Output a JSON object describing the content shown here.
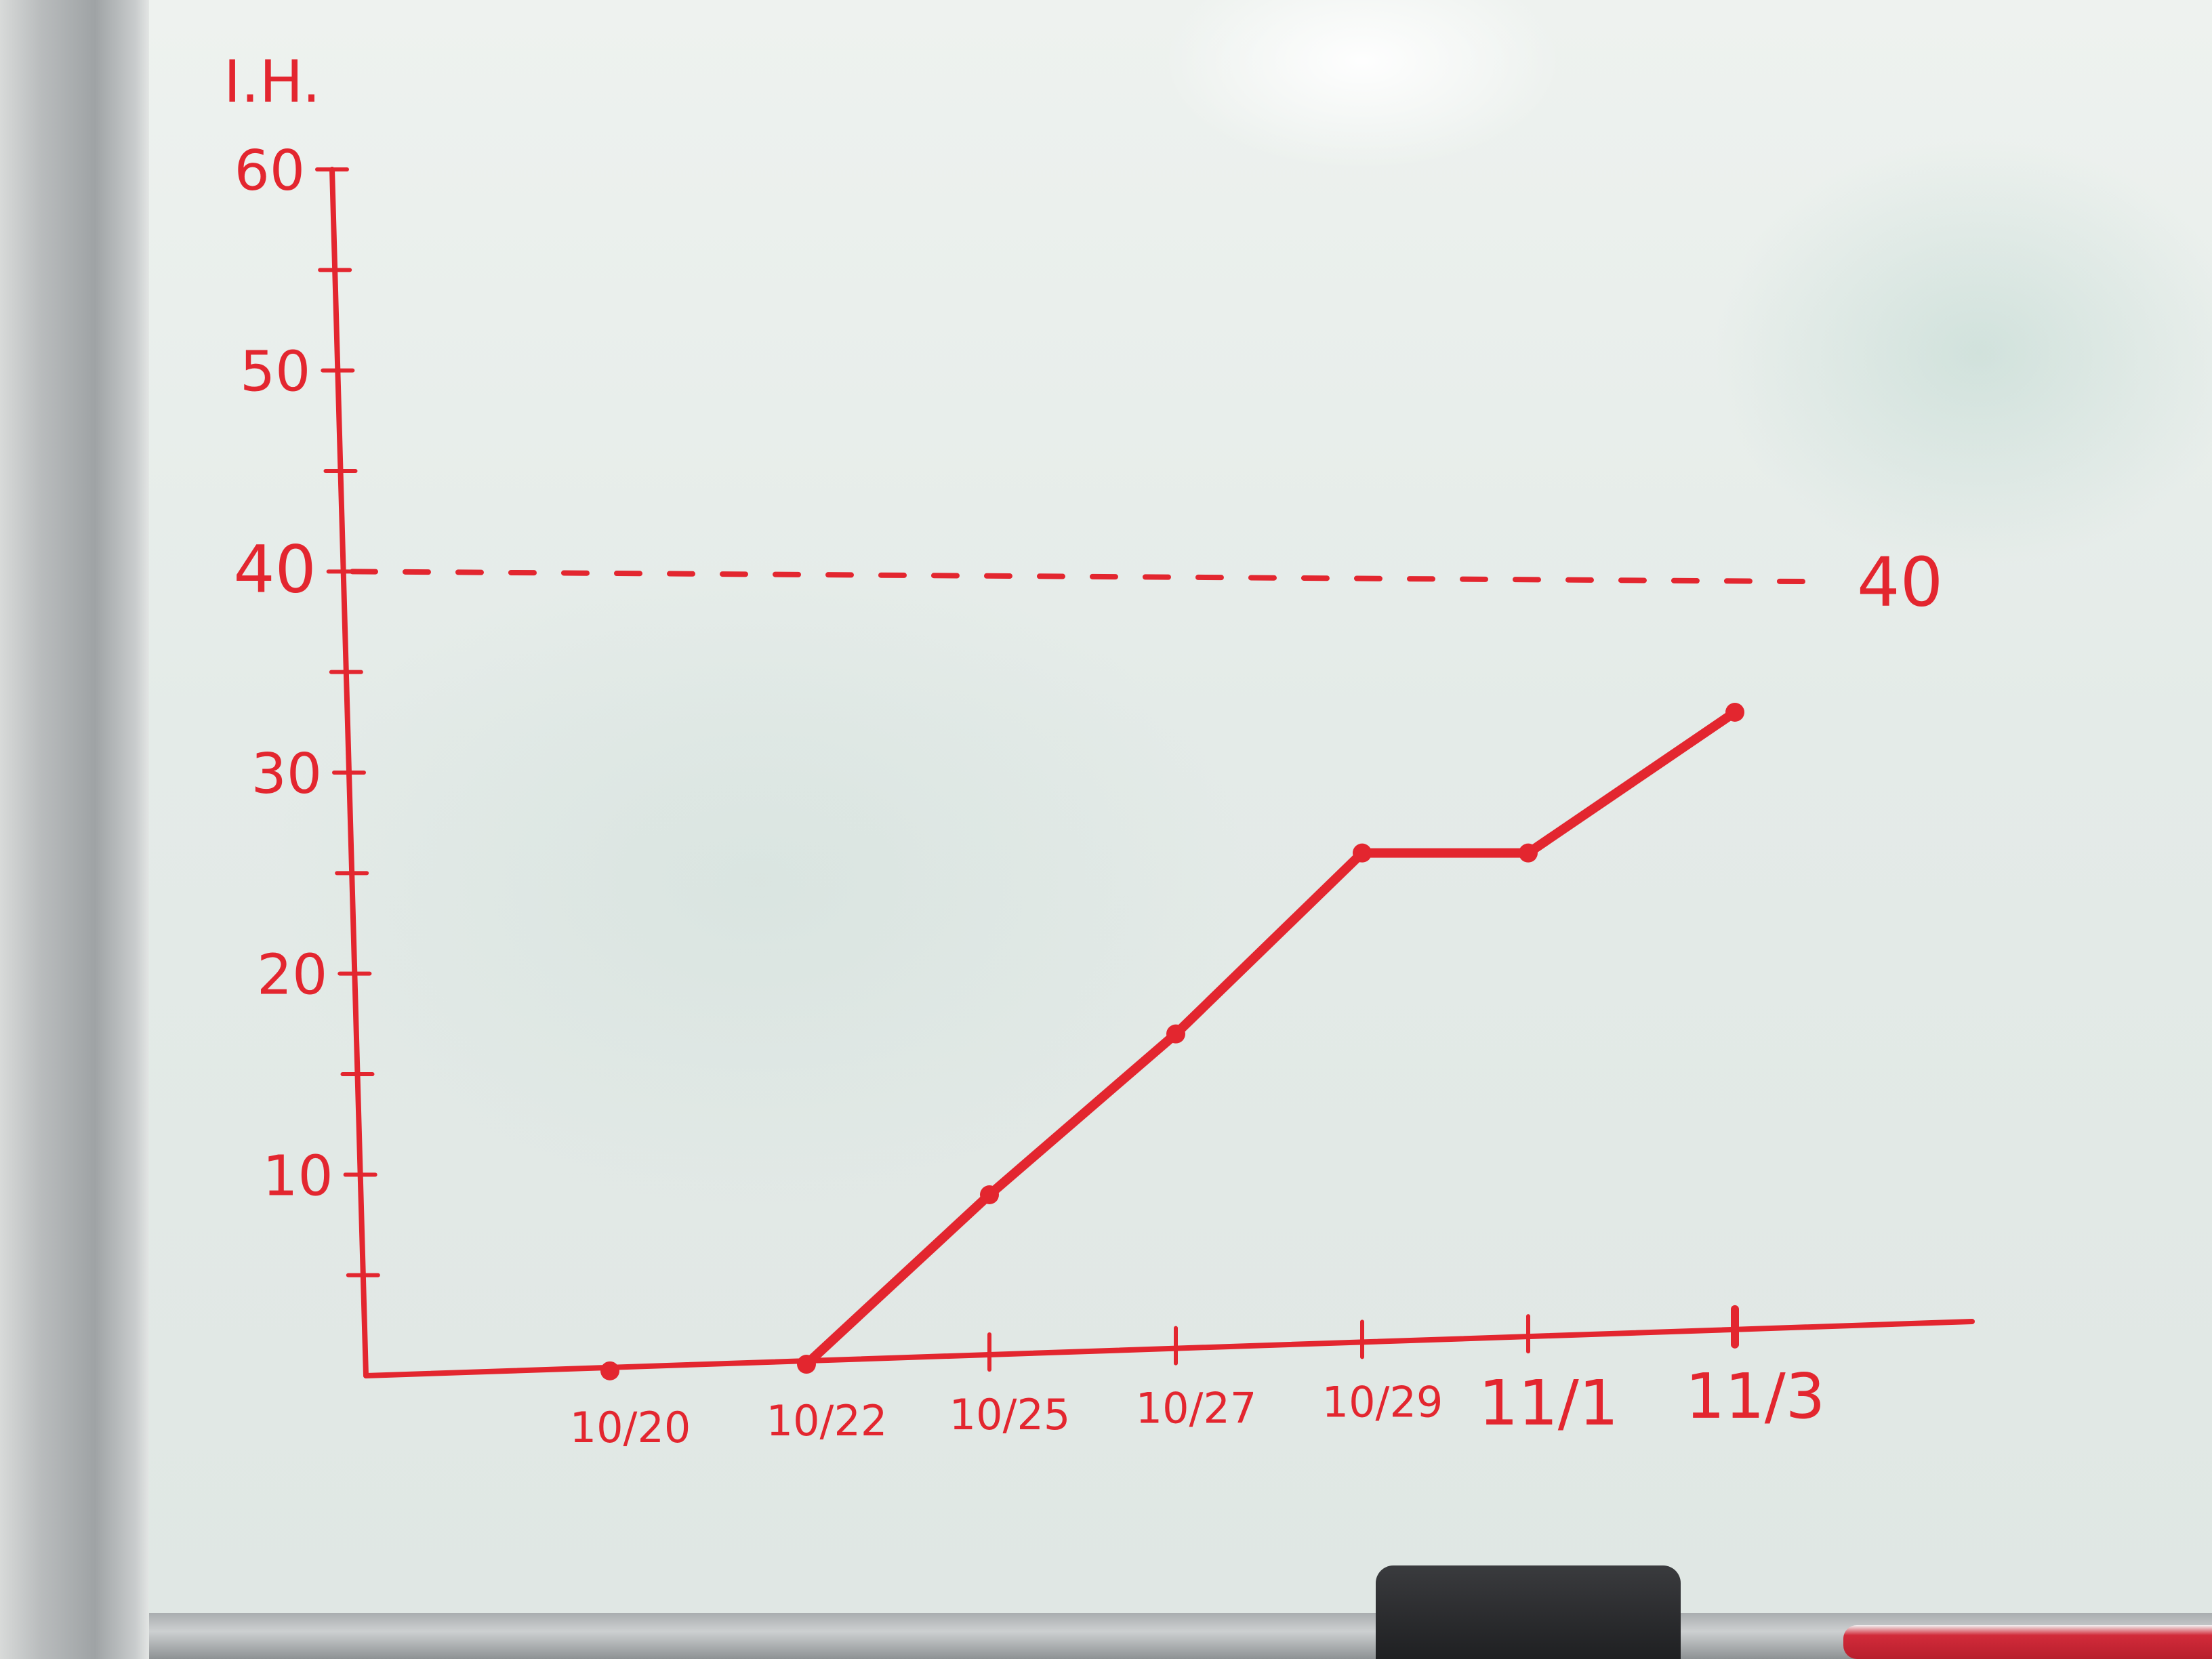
{
  "chart_data": {
    "type": "line",
    "title": "",
    "xlabel": "",
    "ylabel": "I.H.",
    "ylim": [
      0,
      60
    ],
    "y_ticks": [
      "10",
      "20",
      "30",
      "40",
      "50",
      "60"
    ],
    "x_tick_labels": [
      "10/20",
      "10/22",
      "10/25",
      "10/27",
      "10/29",
      "11/1",
      "11/3"
    ],
    "series": [
      {
        "x": [
          "10/20",
          "10/22",
          "10/25",
          "10/27",
          "10/29",
          "11/1",
          "11/3"
        ],
        "values": [
          0,
          0,
          9,
          17,
          26,
          26,
          33
        ]
      }
    ],
    "reference_line": {
      "value": 40,
      "label": "40",
      "style": "dashed"
    },
    "grid": false,
    "ink_color": "#e3262f"
  }
}
